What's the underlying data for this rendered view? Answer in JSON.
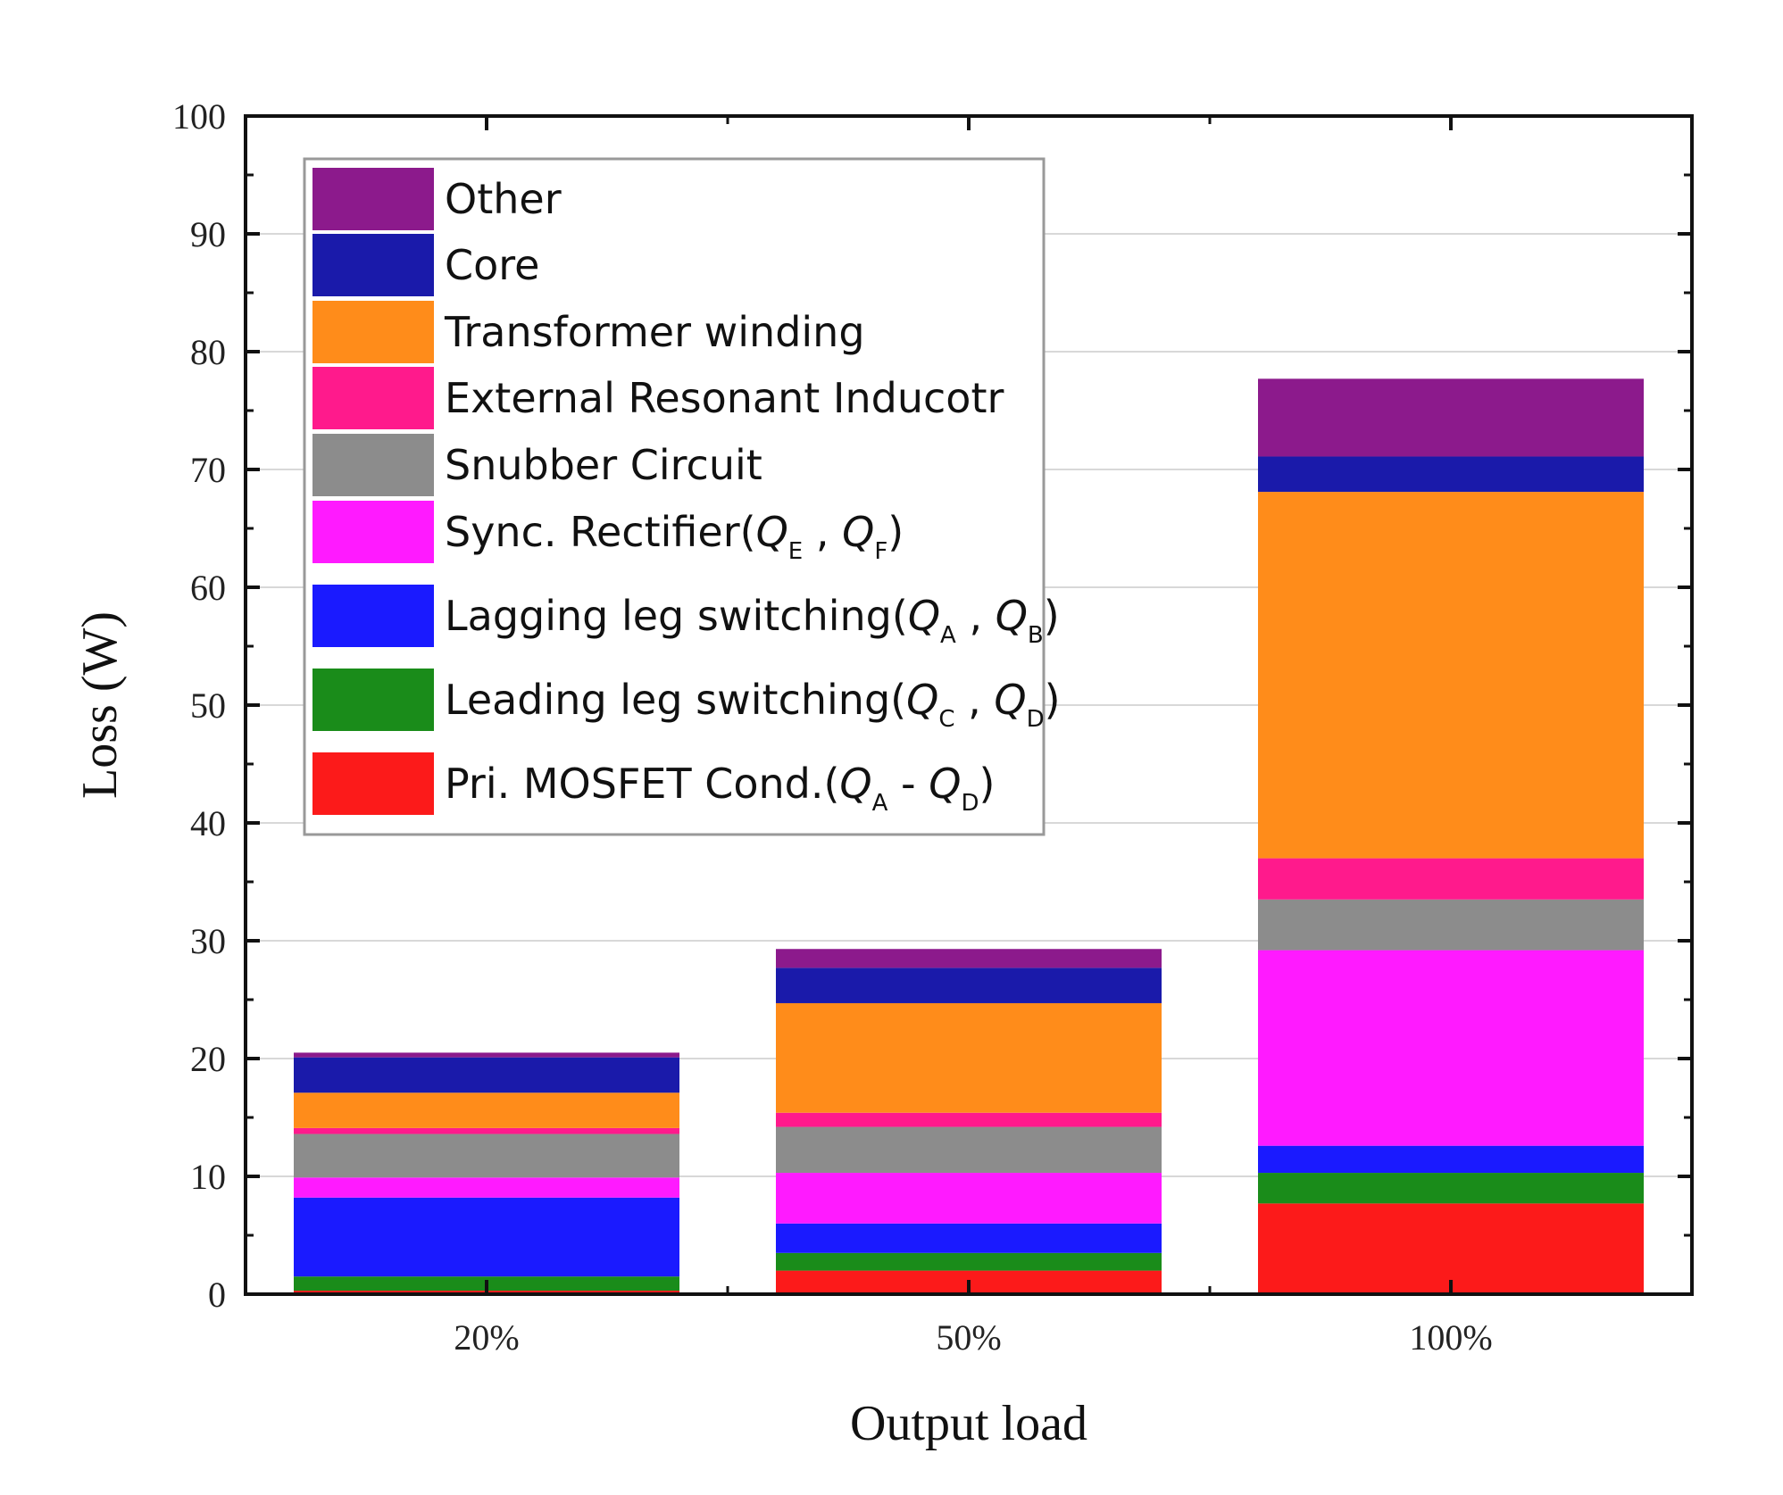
{
  "chart_data": {
    "type": "bar",
    "stacked": true,
    "xlabel": "Output load",
    "ylabel": "Loss (W)",
    "ylim": [
      0,
      100
    ],
    "yticks": [
      0,
      10,
      20,
      30,
      40,
      50,
      60,
      70,
      80,
      90,
      100
    ],
    "ytick_labels": [
      "0",
      "10",
      "20",
      "30",
      "40",
      "50",
      "60",
      "70",
      "80",
      "90",
      "100"
    ],
    "categories": [
      "20%",
      "50%",
      "100%"
    ],
    "grid": true,
    "legend_position": "top-left",
    "series": [
      {
        "name": "Pri. MOSFET Cond.",
        "label_prefix": "Pri. MOSFET Cond.(",
        "var1": "Q",
        "sub1": "A",
        "sep": " - ",
        "var2": "Q",
        "sub2": "D",
        "label_suffix": ")",
        "color": "#fc1a1a",
        "values": [
          0.3,
          2.0,
          7.7
        ]
      },
      {
        "name": "Leading leg switching",
        "label_prefix": "Leading leg switching(",
        "var1": "Q",
        "sub1": "C",
        "sep": " , ",
        "var2": "Q",
        "sub2": "D",
        "label_suffix": ")",
        "color": "#1a8c1a",
        "values": [
          1.2,
          1.5,
          2.6
        ]
      },
      {
        "name": "Lagging leg switching",
        "label_prefix": "Lagging leg switching(",
        "var1": "Q",
        "sub1": "A",
        "sep": " , ",
        "var2": "Q",
        "sub2": "B",
        "label_suffix": ")",
        "color": "#1a1aff",
        "values": [
          6.7,
          2.5,
          2.3
        ]
      },
      {
        "name": "Sync. Rectifier",
        "label_prefix": "Sync. Rectifier(",
        "var1": "Q",
        "sub1": "E",
        "sep": " , ",
        "var2": "Q",
        "sub2": "F",
        "label_suffix": ")",
        "color": "#ff1aff",
        "values": [
          1.7,
          4.3,
          16.6
        ]
      },
      {
        "name": "Snubber Circuit",
        "label_prefix": "Snubber Circuit",
        "color": "#8c8c8c",
        "values": [
          3.7,
          3.9,
          4.3
        ]
      },
      {
        "name": "External Resonant Inducotr",
        "label_prefix": "External Resonant Inducotr",
        "color": "#ff1a8c",
        "values": [
          0.5,
          1.2,
          3.5
        ]
      },
      {
        "name": "Transformer winding",
        "label_prefix": "Transformer winding",
        "color": "#ff8c1a",
        "values": [
          3.0,
          9.3,
          31.1
        ]
      },
      {
        "name": "Core",
        "label_prefix": "Core",
        "color": "#1a1aaa",
        "values": [
          3.0,
          3.0,
          3.0
        ]
      },
      {
        "name": "Other",
        "label_prefix": "Other",
        "color": "#8c1a8c",
        "values": [
          0.4,
          1.6,
          6.6
        ]
      }
    ]
  }
}
